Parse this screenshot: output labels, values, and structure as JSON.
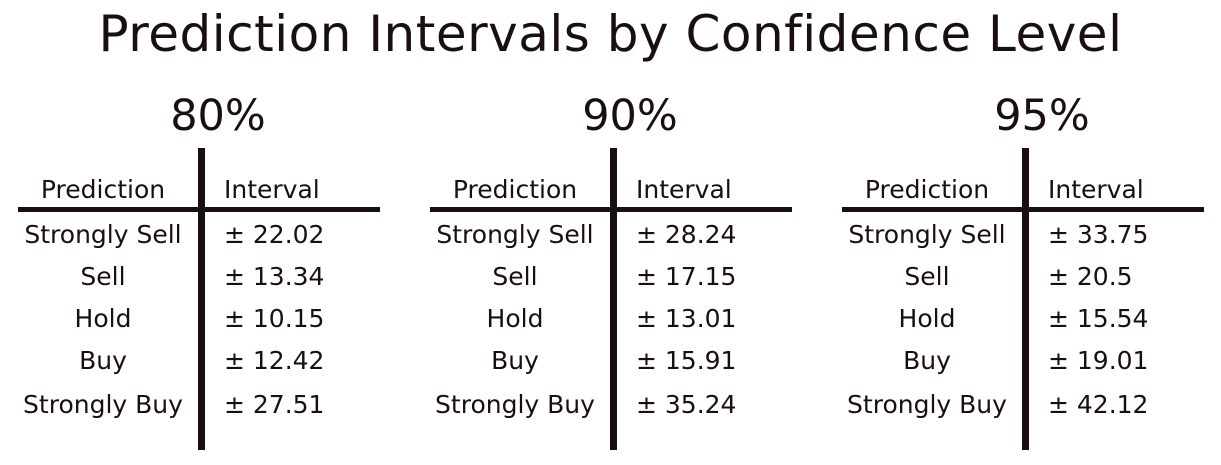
{
  "title": "Prediction Intervals by Confidence Level",
  "columns": {
    "prediction": "Prediction",
    "interval": "Interval"
  },
  "tables": [
    {
      "level": "80%",
      "rows": [
        {
          "prediction": "Strongly Sell",
          "interval": "± 22.02"
        },
        {
          "prediction": "Sell",
          "interval": "± 13.34"
        },
        {
          "prediction": "Hold",
          "interval": "± 10.15"
        },
        {
          "prediction": "Buy",
          "interval": "± 12.42"
        },
        {
          "prediction": "Strongly Buy",
          "interval": "± 27.51"
        }
      ]
    },
    {
      "level": "90%",
      "rows": [
        {
          "prediction": "Strongly Sell",
          "interval": "± 28.24"
        },
        {
          "prediction": "Sell",
          "interval": "± 17.15"
        },
        {
          "prediction": "Hold",
          "interval": "± 13.01"
        },
        {
          "prediction": "Buy",
          "interval": "± 15.91"
        },
        {
          "prediction": "Strongly Buy",
          "interval": "± 35.24"
        }
      ]
    },
    {
      "level": "95%",
      "rows": [
        {
          "prediction": "Strongly Sell",
          "interval": "± 33.75"
        },
        {
          "prediction": "Sell",
          "interval": "± 20.5"
        },
        {
          "prediction": "Hold",
          "interval": "± 15.54"
        },
        {
          "prediction": "Buy",
          "interval": "± 19.01"
        },
        {
          "prediction": "Strongly Buy",
          "interval": "± 42.12"
        }
      ]
    }
  ]
}
